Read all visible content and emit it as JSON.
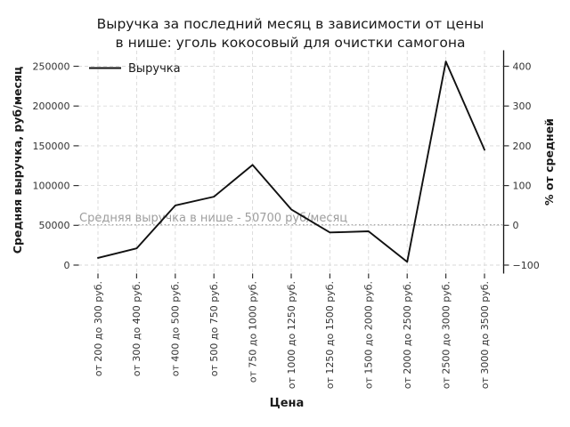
{
  "chart_data": {
    "type": "line",
    "title": "Выручка за последний месяц в зависимости от цены в нише: уголь кокосовый для очистки самогона",
    "title_lines": [
      "Выручка за последний месяц в зависимости от цены",
      "в нише: уголь кокосовый для очистки самогона"
    ],
    "xlabel": "Цена",
    "ylabel_left": "Средняя выручка, руб/месяц",
    "ylabel_right": "% от средней",
    "legend": [
      {
        "label": "Выручка"
      }
    ],
    "legend_position": "upper-left",
    "grid": true,
    "categories": [
      "от 200 до 300 руб.",
      "от 300 до 400 руб.",
      "от 400 до 500 руб.",
      "от 500 до 750 руб.",
      "от 750 до 1000 руб.",
      "от 1000 до 1250 руб.",
      "от 1250 до 1500 руб.",
      "от 1500 до 2000 руб.",
      "от 2000 до 2500 руб.",
      "от 2500 до 3000 руб.",
      "от 3000 до 3500 руб."
    ],
    "series": [
      {
        "name": "Выручка",
        "values": [
          9000,
          21000,
          75000,
          86000,
          126000,
          70000,
          41000,
          42500,
          4000,
          256000,
          145000
        ]
      }
    ],
    "yticks_left": [
      0,
      50000,
      100000,
      150000,
      200000,
      250000
    ],
    "yticks_right": [
      -100,
      0,
      100,
      200,
      300,
      400
    ],
    "ylim_left": [
      -10000,
      270000
    ],
    "annotation": {
      "text": "Средняя выручка в нише - 50700 руб/месяц",
      "value": 50700
    },
    "colors": {
      "line": "#111111",
      "grid": "#d9d9d9",
      "annotation_line": "#aaaaaa",
      "annotation_text": "#9e9e9e",
      "spine": "#111111",
      "tick": "#333333"
    }
  }
}
